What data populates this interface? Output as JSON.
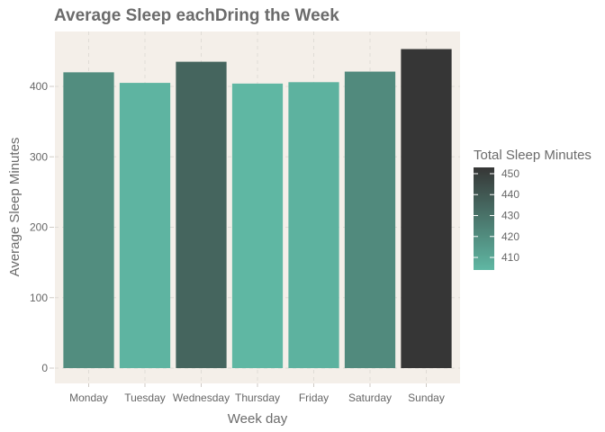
{
  "chart_data": {
    "type": "bar",
    "title": "Average Sleep eachDring the Week",
    "xlabel": "Week day",
    "ylabel": "Average Sleep Minutes",
    "categories": [
      "Monday",
      "Tuesday",
      "Wednesday",
      "Thursday",
      "Friday",
      "Saturday",
      "Sunday"
    ],
    "values": [
      420,
      405,
      435,
      404,
      406,
      421,
      453
    ],
    "ylim": [
      0,
      460
    ],
    "yticks": [
      0,
      100,
      200,
      300,
      400
    ],
    "grid": true,
    "legend": {
      "title": "Total Sleep Minutes",
      "placement": "right",
      "ticks": [
        410,
        420,
        430,
        440,
        450
      ],
      "range": [
        404,
        453
      ],
      "color_low": "#5fb7a3",
      "color_high": "#363636"
    },
    "colors": {
      "panel_background": "#f4efe9",
      "grid": "#e0dcd6",
      "bar_low": "#5fb7a3",
      "bar_high": "#363636"
    }
  }
}
